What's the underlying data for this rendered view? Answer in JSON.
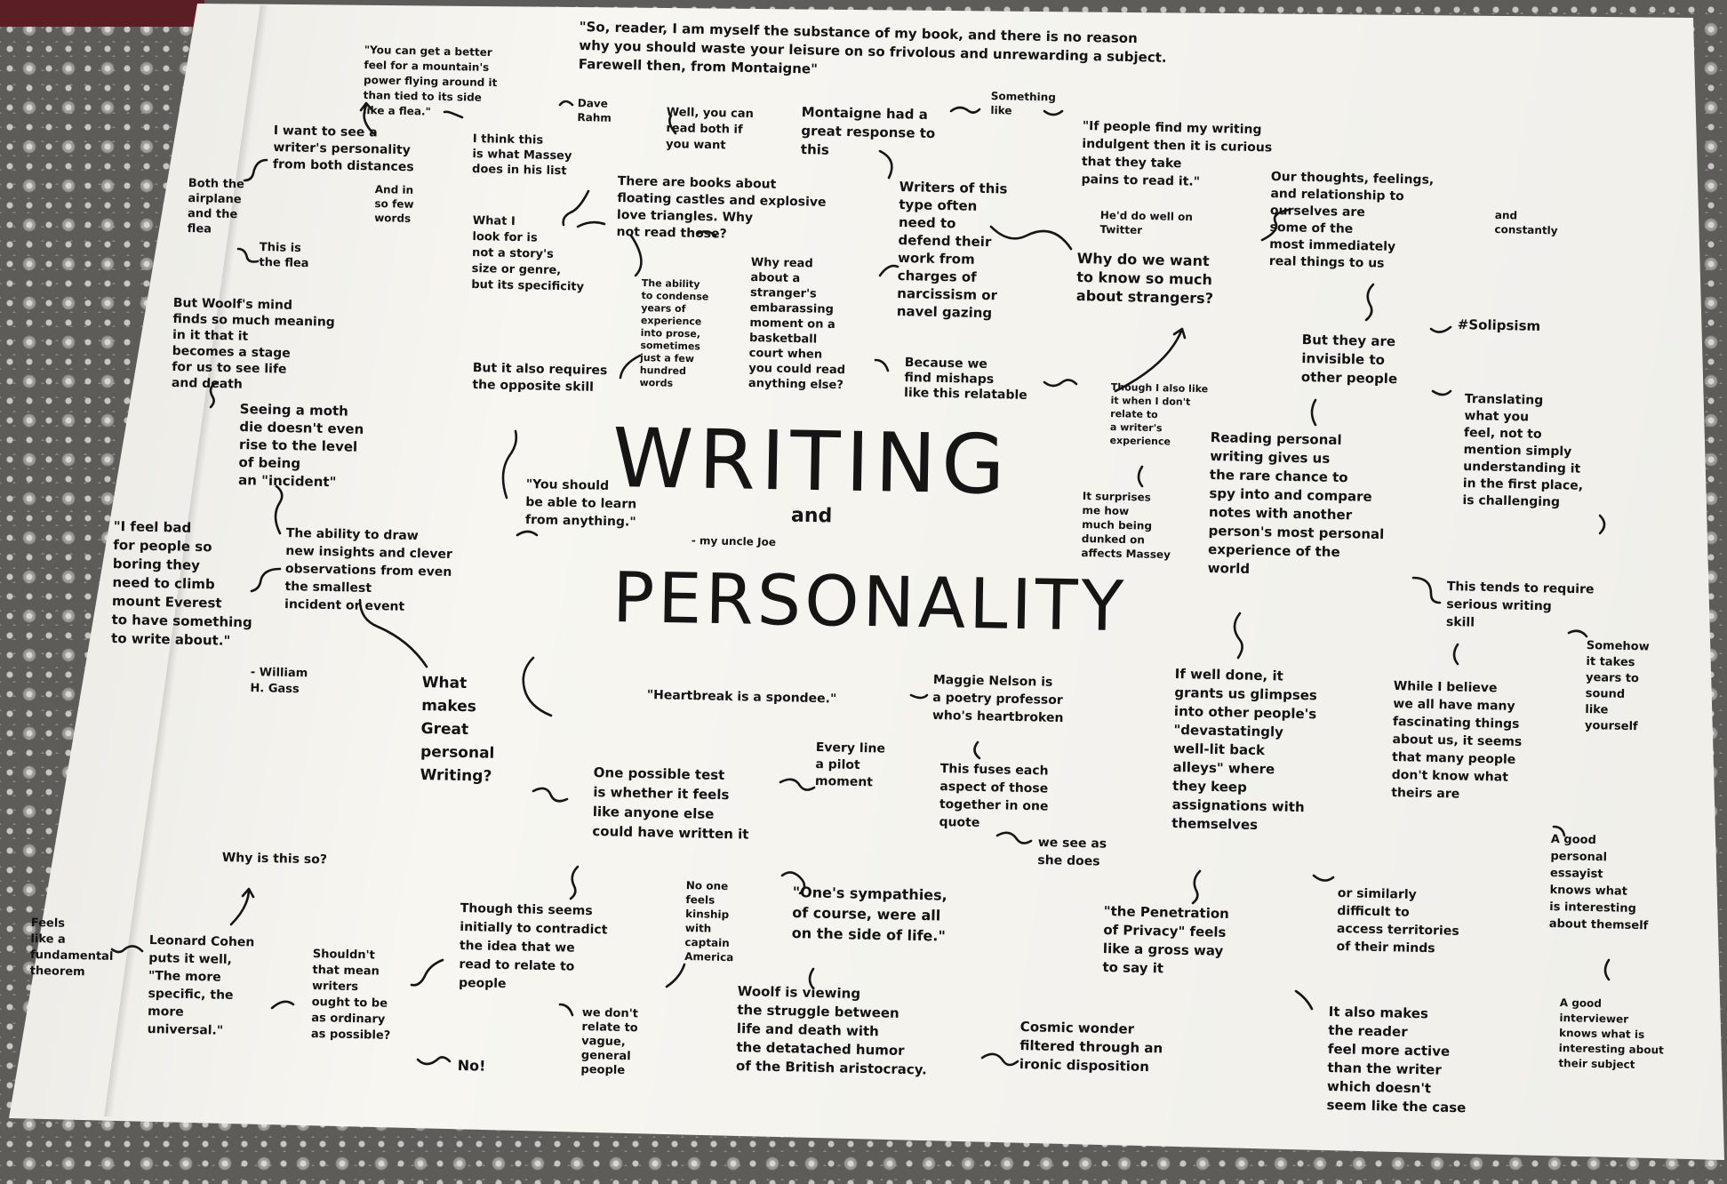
{
  "title": {
    "line1": "WRITING",
    "and": "and",
    "line2": "PERSONALITY"
  },
  "notes": {
    "quote_montaigne": "\"So, reader, I am myself the substance of my book, and there is no reason\nwhy you should waste your leisure on so frivolous and unrewarding a subject.\nFarewell then, from Montaigne\"",
    "mountain_quote": "\"You can get a better\nfeel for a mountain's\npower flying around it\nthan tied to its side\nlike a flea.\"",
    "dave_rahm": "Dave\nRahm",
    "read_both": "Well, you can\nread both if\nyou want",
    "montaigne_response": "Montaigne had a\ngreat response to\nthis",
    "something_like": "Something\nlike",
    "indulgent_quote": "\"If people find my writing\nindulgent then it is curious\nthat they take\npains to read it.\"",
    "twitter": "He'd do well on\nTwitter",
    "writer_personality": "I want to see a\nwriter's personality\nfrom both distances",
    "massey_list": "I think this\nis what Massey\ndoes in his list",
    "few_words": "And in\nso few\nwords",
    "airplane_flea": "Both the\nairplane\nand the\nflea",
    "this_is_flea": "This is\nthe flea",
    "woolf_mind": "But Woolf's mind\nfinds so much meaning\nin it that it\nbecomes a stage\nfor us to see life\nand death",
    "moth": "Seeing a moth\ndie doesn't even\nrise to the level\nof being\nan \"incident\"",
    "floating_castles": "There are books about\nfloating castles and explosive\nlove triangles. Why\nnot read those?",
    "what_i_look": "What I\nlook for is\nnot a story's\nsize or genre,\nbut its specificity",
    "condense": "The ability\nto condense\nyears of\nexperience\ninto prose,\nsometimes\njust a few\nhundred\nwords",
    "why_read": "Why read\nabout a\nstranger's\nembarassing\nmoment on a\nbasketball\ncourt when\nyou could read\nanything else?",
    "writers_defend": "Writers of this\ntype often\nneed to\ndefend their\nwork from\ncharges of\nnarcissism or\nnavel gazing",
    "why_strangers": "Why do we want\nto know so much\nabout strangers?",
    "thoughts_feelings": "Our thoughts, feelings,\nand relationship to\nourselves are\nsome of the\nmost immediately\nreal things to us",
    "and_constantly": "and\nconstantly",
    "invisible": "But they are\ninvisible to\nother people",
    "solipsism": "#Solipsism",
    "opposite_skill": "But it also requires\nthe opposite skill",
    "mishaps": "Because we\nfind mishaps\nlike this relatable",
    "dont_relate": "Though I also like\nit when I don't\nrelate to\na writer's\nexperience",
    "dunked": "It surprises\nme how\nmuch being\ndunked on\naffects Massey",
    "reading_personal": "Reading personal\nwriting gives us\nthe rare chance to\nspy into and compare\nnotes with another\nperson's most personal\nexperience of the\nworld",
    "translating": "Translating\nwhat you\nfeel, not to\nmention simply\nunderstanding it\nin the first place,\nis challenging",
    "learn_anything": "\"You should\nbe able to learn\nfrom anything.\"",
    "uncle_joe": "- my uncle Joe",
    "ability_draw": "The ability to draw\nnew insights and clever\nobservations from even\nthe smallest\nincident or event",
    "everest": "\"I feel bad\nfor people so\nboring they\nneed to climb\nmount Everest\nto have something\nto write about.\"",
    "gass": "- William\nH. Gass",
    "great_writing": "What\nmakes\nGreat\npersonal\nWriting?",
    "spondee": "\"Heartbreak is a spondee.\"",
    "maggie": "Maggie Nelson is\na poetry professor\nwho's heartbroken",
    "fuses": "This fuses each\naspect of those\ntogether in one\nquote",
    "she_does": "we see as\nshe does",
    "test": "One possible test\nis whether it feels\nlike anyone else\ncould have written it",
    "pilot": "Every line\na pilot\nmoment",
    "glimpses": "If well done, it\ngrants us glimpses\ninto other people's\n\"devastatingly\nwell-lit back\nalleys\" where\nthey keep\nassignations with\nthemselves",
    "serious_skill": "This tends to require\nserious writing\nskill",
    "fascinating": "While I believe\nwe all have many\nfascinating things\nabout us, it seems\nthat many people\ndon't know what\ntheirs are",
    "sound_like": "Somehow\nit takes\nyears to\nsound\nlike\nyourself",
    "why_so": "Why is this so?",
    "fundamental": "Feels\nlike a\nfundamental\ntheorem",
    "cohen": "Leonard Cohen\nputs it well,\n\"The more\nspecific, the\nmore\nuniversal.\"",
    "ordinary": "Shouldn't\nthat mean\nwriters\nought to be\nas ordinary\nas possible?",
    "no": "No!",
    "contradict": "Though this seems\ninitially to contradict\nthe idea that we\nread to relate to\npeople",
    "vague": "we don't\nrelate to\nvague,\ngeneral\npeople",
    "kinship": "No one\nfeels\nkinship\nwith\ncaptain\nAmerica",
    "sympathies": "\"One's sympathies,\nof course, were all\non the side of life.\"",
    "woolf_struggle": "Woolf is viewing\nthe struggle between\nlife and death with\nthe detatached humor\nof the British aristocracy.",
    "cosmic": "Cosmic wonder\nfiltered through an\nironic disposition",
    "penetration": "\"the Penetration\nof Privacy\" feels\nlike a gross way\nto say it",
    "access": "or similarly\ndifficult to\naccess territories\nof their minds",
    "reader_active": "It also makes\nthe reader\nfeel more active\nthan the writer\nwhich doesn't\nseem like the case",
    "good_essayist": "A good\npersonal\nessayist\nknows what\nis interesting\nabout themself",
    "interviewer": "A good\ninterviewer\nknows what is\ninteresting about\ntheir subject"
  }
}
